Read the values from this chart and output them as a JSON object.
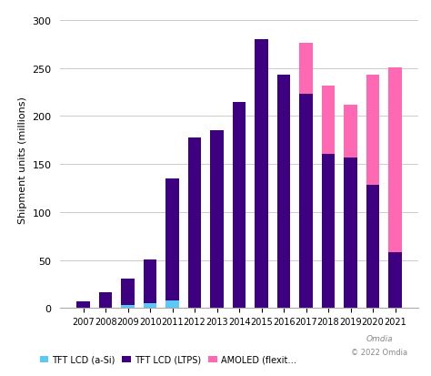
{
  "years": [
    2007,
    2008,
    2009,
    2010,
    2011,
    2012,
    2013,
    2014,
    2015,
    2016,
    2017,
    2018,
    2019,
    2020,
    2021
  ],
  "tft_asi": [
    0,
    0,
    3,
    5,
    8,
    0,
    0,
    0,
    0,
    0,
    0,
    0,
    0,
    0,
    0
  ],
  "tft_ltps": [
    7,
    17,
    28,
    46,
    127,
    178,
    185,
    215,
    280,
    243,
    223,
    161,
    157,
    128,
    58
  ],
  "amoled": [
    0,
    0,
    0,
    0,
    0,
    0,
    0,
    0,
    0,
    0,
    53,
    71,
    55,
    115,
    193
  ],
  "tft_asi_color": "#5BC8F5",
  "tft_ltps_color": "#3D0080",
  "amoled_color": "#FF69B4",
  "ylabel": "Shipment units (millions)",
  "ylim": [
    0,
    310
  ],
  "yticks": [
    0,
    50,
    100,
    150,
    200,
    250,
    300
  ],
  "legend_labels": [
    "TFT LCD (a-Si)",
    "TFT LCD (LTPS)",
    "AMOLED (flexit…"
  ],
  "watermark_line1": "Omdia",
  "watermark_line2": "© 2022 Omdia",
  "background_color": "#ffffff",
  "grid_color": "#cccccc",
  "bar_width": 0.6,
  "tick_fontsize": 7,
  "ylabel_fontsize": 8,
  "legend_fontsize": 7
}
